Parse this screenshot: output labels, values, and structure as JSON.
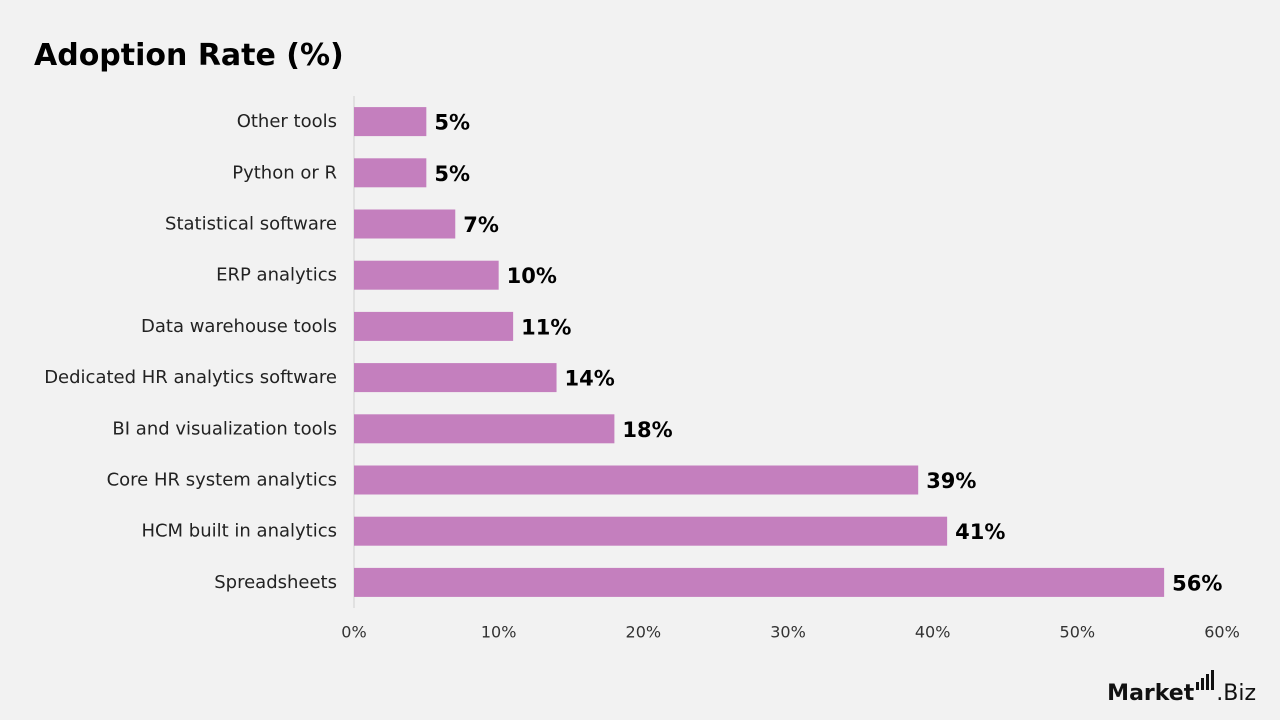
{
  "chart_data": {
    "type": "bar",
    "orientation": "horizontal",
    "title": "Adoption Rate (%)",
    "categories": [
      "Other tools",
      "Python or R",
      "Statistical software",
      "ERP analytics",
      "Data warehouse tools",
      "Dedicated HR analytics software",
      "BI and visualization tools",
      "Core HR system analytics",
      "HCM built in analytics",
      "Spreadsheets"
    ],
    "values": [
      5,
      5,
      7,
      10,
      11,
      14,
      18,
      39,
      41,
      56
    ],
    "value_labels": [
      "5%",
      "5%",
      "7%",
      "10%",
      "11%",
      "14%",
      "18%",
      "39%",
      "41%",
      "56%"
    ],
    "xlim": [
      0,
      60
    ],
    "xticks": [
      0,
      10,
      20,
      30,
      40,
      50,
      60
    ],
    "xtick_labels": [
      "0%",
      "10%",
      "20%",
      "30%",
      "40%",
      "50%",
      "60%"
    ],
    "xlabel": "",
    "ylabel": "",
    "grid": false,
    "legend": "none",
    "bar_color": "#c47fbe",
    "axis_color": "#d0d0d0"
  },
  "brand": {
    "part1": "Market",
    "part2": ".Biz"
  }
}
